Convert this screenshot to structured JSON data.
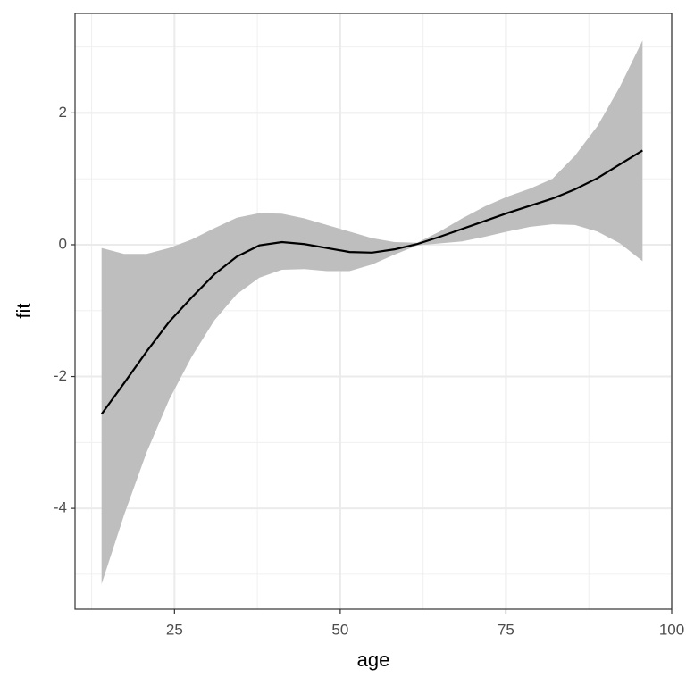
{
  "chart_data": {
    "type": "line",
    "x_label": "age",
    "y_label": "fit",
    "x": [
      14,
      17.4,
      20.8,
      24.2,
      27.6,
      31,
      34.4,
      37.8,
      41.2,
      44.6,
      48,
      51.4,
      54.8,
      58.2,
      61.6,
      65,
      68.4,
      71.8,
      75.2,
      78.6,
      82,
      85.4,
      88.8,
      92.2,
      95.6
    ],
    "values": [
      -2.57,
      -2.1,
      -1.62,
      -1.17,
      -0.8,
      -0.45,
      -0.18,
      -0.01,
      0.04,
      0.01,
      -0.05,
      -0.11,
      -0.12,
      -0.07,
      0.01,
      0.12,
      0.24,
      0.36,
      0.48,
      0.59,
      0.7,
      0.84,
      1.01,
      1.22,
      1.43
    ],
    "upper": [
      -0.05,
      -0.14,
      -0.14,
      -0.05,
      0.08,
      0.25,
      0.41,
      0.48,
      0.47,
      0.4,
      0.3,
      0.2,
      0.1,
      0.04,
      0.03,
      0.2,
      0.4,
      0.58,
      0.73,
      0.85,
      1.0,
      1.35,
      1.8,
      2.4,
      3.1
    ],
    "lower": [
      -5.15,
      -4.1,
      -3.15,
      -2.35,
      -1.7,
      -1.15,
      -0.75,
      -0.5,
      -0.38,
      -0.37,
      -0.4,
      -0.4,
      -0.3,
      -0.15,
      -0.01,
      0.02,
      0.05,
      0.12,
      0.2,
      0.27,
      0.31,
      0.3,
      0.2,
      0.02,
      -0.25
    ],
    "color": "#000000",
    "band_color": "#bebebe",
    "xlim": [
      10,
      100
    ],
    "ylim": [
      -5.53,
      3.51
    ],
    "xticks": [
      25,
      50,
      75,
      100
    ],
    "yticks": [
      -4,
      -2,
      0,
      2
    ],
    "x_minor_grid": [
      12.5,
      37.5,
      62.5,
      87.5
    ],
    "y_minor_grid": [
      -5,
      -3,
      -1,
      1,
      3
    ],
    "grid": true
  }
}
